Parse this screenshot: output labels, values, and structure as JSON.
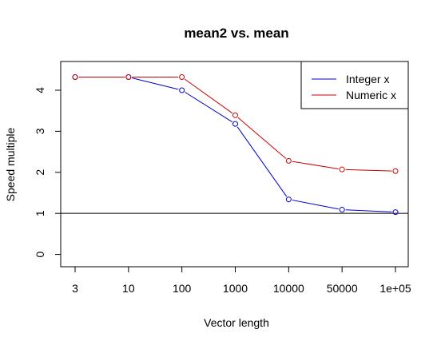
{
  "chart_data": {
    "type": "line",
    "title": "mean2 vs. mean",
    "xlabel": "Vector length",
    "ylabel": "Speed multiple",
    "categories": [
      "3",
      "10",
      "100",
      "1000",
      "10000",
      "50000",
      "1e+05"
    ],
    "ylim": [
      -0.3,
      4.7
    ],
    "yticks": [
      "0",
      "1",
      "2",
      "3",
      "4"
    ],
    "grid": false,
    "reference_line_y": 1,
    "legend_position": "top-right",
    "series": [
      {
        "name": "Integer x",
        "color": "#0000cc",
        "values": [
          4.32,
          4.32,
          4.0,
          3.18,
          1.34,
          1.09,
          1.03
        ]
      },
      {
        "name": "Numeric x",
        "color": "#cc0000",
        "values": [
          4.32,
          4.32,
          4.32,
          3.39,
          2.28,
          2.07,
          2.03
        ]
      }
    ]
  }
}
